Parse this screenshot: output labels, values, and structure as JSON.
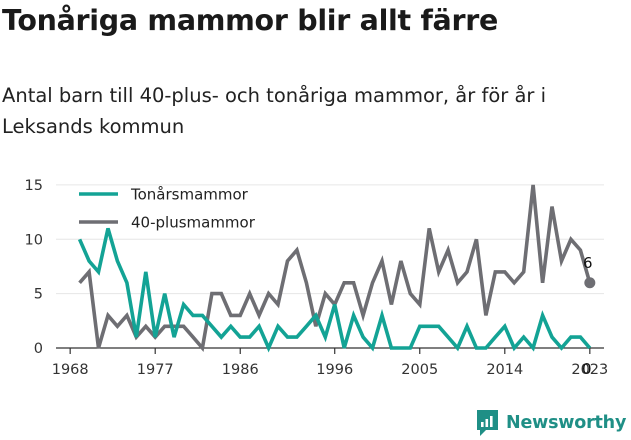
{
  "title": "Tonåriga mammor blir allt färre",
  "subtitle": "Antal barn till 40-plus- och tonåriga mammor, år för år i Leksands kommun",
  "brand": {
    "name": "Newsworthy",
    "icon": "newsworthy-logo-icon",
    "color": "#1f8f86"
  },
  "chart_data": {
    "type": "line",
    "title": "",
    "xlabel": "",
    "ylabel": "",
    "x": [
      1968,
      1969,
      1970,
      1971,
      1972,
      1973,
      1974,
      1975,
      1976,
      1977,
      1978,
      1979,
      1980,
      1981,
      1982,
      1983,
      1984,
      1985,
      1986,
      1987,
      1988,
      1989,
      1990,
      1991,
      1992,
      1993,
      1994,
      1995,
      1996,
      1997,
      1998,
      1999,
      2000,
      2001,
      2002,
      2003,
      2004,
      2005,
      2006,
      2007,
      2008,
      2009,
      2010,
      2011,
      2012,
      2013,
      2014,
      2015,
      2016,
      2017,
      2018,
      2019,
      2020,
      2021,
      2022,
      2023
    ],
    "xlim": [
      1966.5,
      2024.5
    ],
    "ylim": [
      0,
      16
    ],
    "xticks": [
      1968,
      1977,
      1986,
      1996,
      2005,
      2014,
      2023
    ],
    "yticks": [
      0,
      5,
      10,
      15
    ],
    "grid": "horizontal",
    "legend_position": "top-left",
    "series": [
      {
        "name": "Tonårsmammor",
        "color": "#13a395",
        "values": [
          null,
          10,
          8,
          7,
          11,
          8,
          6,
          1,
          7,
          1,
          5,
          1,
          4,
          3,
          3,
          2,
          1,
          2,
          1,
          1,
          2,
          0,
          2,
          1,
          1,
          2,
          3,
          1,
          4,
          0,
          3,
          1,
          0,
          3,
          0,
          0,
          0,
          2,
          2,
          2,
          1,
          0,
          2,
          0,
          0,
          1,
          2,
          0,
          1,
          0,
          3,
          1,
          0,
          1,
          1,
          0
        ],
        "end_value": 0
      },
      {
        "name": "40-plusmammor",
        "color": "#6e6e73",
        "values": [
          null,
          6,
          7,
          0,
          3,
          2,
          3,
          1,
          2,
          1,
          2,
          2,
          2,
          1,
          0,
          5,
          5,
          3,
          3,
          5,
          3,
          5,
          4,
          8,
          9,
          6,
          2,
          5,
          4,
          6,
          6,
          3,
          6,
          8,
          4,
          8,
          5,
          4,
          11,
          7,
          9,
          6,
          7,
          10,
          3,
          7,
          7,
          6,
          7,
          15,
          6,
          13,
          8,
          10,
          9,
          6
        ],
        "end_value": 6
      }
    ]
  }
}
